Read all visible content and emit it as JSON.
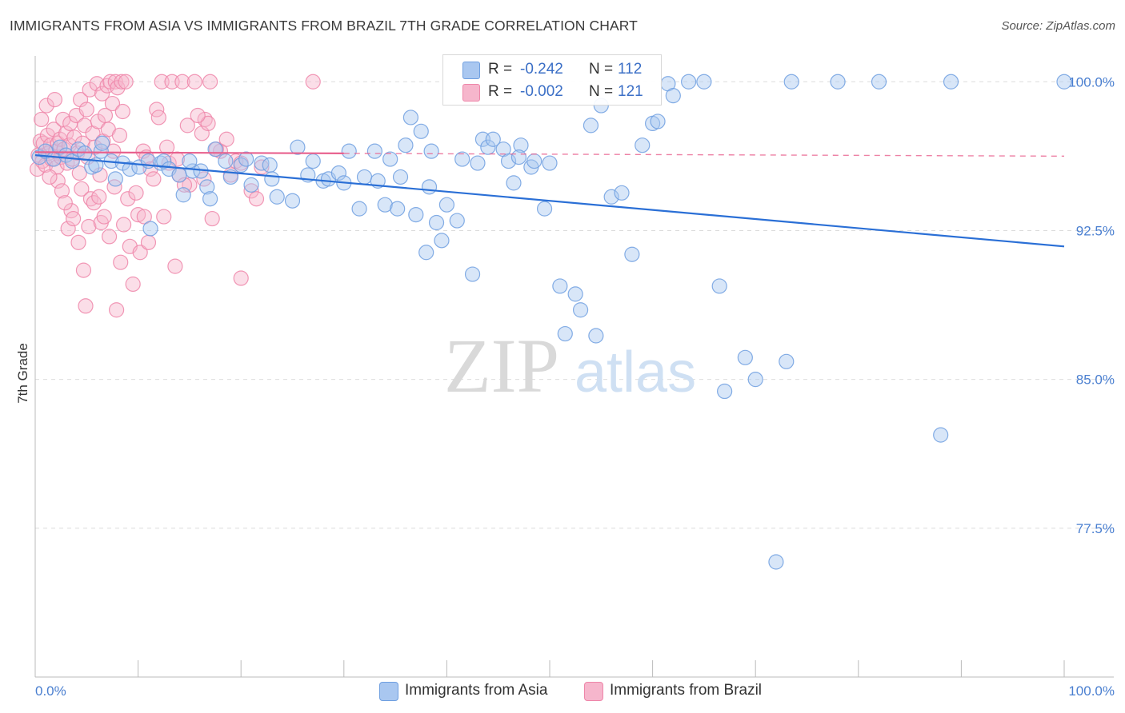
{
  "title": "IMMIGRANTS FROM ASIA VS IMMIGRANTS FROM BRAZIL 7TH GRADE CORRELATION CHART",
  "source": "Source: ZipAtlas.com",
  "watermark": {
    "part1": "ZIP",
    "part2": "atlas"
  },
  "stats": {
    "rows": [
      {
        "r_label": "R =",
        "r_value": "-0.242",
        "n_label": "N =",
        "n_value": "112"
      },
      {
        "r_label": "R =",
        "r_value": "-0.002",
        "n_label": "N =",
        "n_value": "121"
      }
    ]
  },
  "legend": {
    "asia": "Immigrants from Asia",
    "brazil": "Immigrants from Brazil"
  },
  "chart_data": {
    "type": "scatter",
    "title": "IMMIGRANTS FROM ASIA VS IMMIGRANTS FROM BRAZIL 7TH GRADE CORRELATION CHART",
    "xlabel": "",
    "ylabel": "7th Grade",
    "xlim": [
      0,
      100
    ],
    "ylim": [
      70,
      101.3
    ],
    "x_tick_labels": [
      "0.0%",
      "100.0%"
    ],
    "y_ticks": [
      77.5,
      85.0,
      92.5,
      100.0
    ],
    "y_tick_labels": [
      "77.5%",
      "85.0%",
      "92.5%",
      "100.0%"
    ],
    "grid": true,
    "legend_position": "bottom",
    "colors": {
      "asia": "#6f9fe0",
      "asia_fill": "#a9c7f0",
      "asia_line": "#2a6fd6",
      "brazil": "#ee86a9",
      "brazil_fill": "#f6b6cc",
      "brazil_line": "#e8618e"
    },
    "series": [
      {
        "name": "Immigrants from Asia",
        "r": -0.242,
        "n": 112,
        "trend": {
          "x": [
            0,
            100
          ],
          "y": [
            96.3,
            91.7
          ]
        },
        "points": [
          [
            0.4,
            96.2
          ],
          [
            1.0,
            96.5
          ],
          [
            1.8,
            96.1
          ],
          [
            2.4,
            96.7
          ],
          [
            3.0,
            96.3
          ],
          [
            3.6,
            96.0
          ],
          [
            4.2,
            96.6
          ],
          [
            4.8,
            96.4
          ],
          [
            5.5,
            95.7
          ],
          [
            5.9,
            95.8
          ],
          [
            6.4,
            96.5
          ],
          [
            6.5,
            96.9
          ],
          [
            7.4,
            96.0
          ],
          [
            7.8,
            95.1
          ],
          [
            8.5,
            95.9
          ],
          [
            9.2,
            95.6
          ],
          [
            10.1,
            95.7
          ],
          [
            11.0,
            96.0
          ],
          [
            11.2,
            92.6
          ],
          [
            12.2,
            95.9
          ],
          [
            12.5,
            96.0
          ],
          [
            13.0,
            95.6
          ],
          [
            14.0,
            95.3
          ],
          [
            15.3,
            95.5
          ],
          [
            14.4,
            94.3
          ],
          [
            16.1,
            95.5
          ],
          [
            15.0,
            96.0
          ],
          [
            16.7,
            94.7
          ],
          [
            17.5,
            96.6
          ],
          [
            18.5,
            96.0
          ],
          [
            17.0,
            94.1
          ],
          [
            19.0,
            95.2
          ],
          [
            20.0,
            95.8
          ],
          [
            20.5,
            96.1
          ],
          [
            21.0,
            94.8
          ],
          [
            22.0,
            95.9
          ],
          [
            22.8,
            95.8
          ],
          [
            23.0,
            95.1
          ],
          [
            23.5,
            94.2
          ],
          [
            25.0,
            94.0
          ],
          [
            25.5,
            96.7
          ],
          [
            26.5,
            95.3
          ],
          [
            27.0,
            96.0
          ],
          [
            28.0,
            95.0
          ],
          [
            28.5,
            95.1
          ],
          [
            29.5,
            95.4
          ],
          [
            30.0,
            94.9
          ],
          [
            30.5,
            96.5
          ],
          [
            31.5,
            93.6
          ],
          [
            32.0,
            95.2
          ],
          [
            33.0,
            96.5
          ],
          [
            33.3,
            95.0
          ],
          [
            34.0,
            93.8
          ],
          [
            34.5,
            96.1
          ],
          [
            35.2,
            93.6
          ],
          [
            35.5,
            95.2
          ],
          [
            36.0,
            96.8
          ],
          [
            37.0,
            93.3
          ],
          [
            36.5,
            98.2
          ],
          [
            37.5,
            97.5
          ],
          [
            38.5,
            96.5
          ],
          [
            38.3,
            94.7
          ],
          [
            39.0,
            92.9
          ],
          [
            38.0,
            91.4
          ],
          [
            39.5,
            92.0
          ],
          [
            40.0,
            93.8
          ],
          [
            41.0,
            93.0
          ],
          [
            41.5,
            96.1
          ],
          [
            42.5,
            90.3
          ],
          [
            43.0,
            95.9
          ],
          [
            43.5,
            97.1
          ],
          [
            44.0,
            96.7
          ],
          [
            44.5,
            97.1
          ],
          [
            45.5,
            96.6
          ],
          [
            46.0,
            96.0
          ],
          [
            47.2,
            96.8
          ],
          [
            47.0,
            96.2
          ],
          [
            46.5,
            94.9
          ],
          [
            48.2,
            95.7
          ],
          [
            48.5,
            96.0
          ],
          [
            49.5,
            93.6
          ],
          [
            50.0,
            95.9
          ],
          [
            51.0,
            89.7
          ],
          [
            52.5,
            89.3
          ],
          [
            53.0,
            88.5
          ],
          [
            51.5,
            87.3
          ],
          [
            54.5,
            87.2
          ],
          [
            55.0,
            98.8
          ],
          [
            54.0,
            97.8
          ],
          [
            56.0,
            94.2
          ],
          [
            57.0,
            94.4
          ],
          [
            58.0,
            91.3
          ],
          [
            59.0,
            96.8
          ],
          [
            60.0,
            97.9
          ],
          [
            60.5,
            98.0
          ],
          [
            61.5,
            99.9
          ],
          [
            62.0,
            99.3
          ],
          [
            63.5,
            100.0
          ],
          [
            65.0,
            100.0
          ],
          [
            66.5,
            89.7
          ],
          [
            67.0,
            84.4
          ],
          [
            69.0,
            86.1
          ],
          [
            70.0,
            85.0
          ],
          [
            73.0,
            85.9
          ],
          [
            72.0,
            75.8
          ],
          [
            73.5,
            100.0
          ],
          [
            78.0,
            100.0
          ],
          [
            82.0,
            100.0
          ],
          [
            88.0,
            82.2
          ],
          [
            89.0,
            100.0
          ],
          [
            100.0,
            100.0
          ]
        ]
      },
      {
        "name": "Immigrants from Brazil",
        "r": -0.002,
        "n": 121,
        "trend": {
          "x": [
            0,
            100
          ],
          "y": [
            96.45,
            96.25
          ]
        },
        "points": [
          [
            0.2,
            95.6
          ],
          [
            0.3,
            96.3
          ],
          [
            0.5,
            97.0
          ],
          [
            0.7,
            96.0
          ],
          [
            0.8,
            96.9
          ],
          [
            1.0,
            95.8
          ],
          [
            1.2,
            97.3
          ],
          [
            1.3,
            96.4
          ],
          [
            1.5,
            96.8
          ],
          [
            1.6,
            96.1
          ],
          [
            1.8,
            97.6
          ],
          [
            2.0,
            96.5
          ],
          [
            2.1,
            95.7
          ],
          [
            2.2,
            96.9
          ],
          [
            2.4,
            97.1
          ],
          [
            2.5,
            96.2
          ],
          [
            2.7,
            98.1
          ],
          [
            2.8,
            96.6
          ],
          [
            3.0,
            97.4
          ],
          [
            3.1,
            95.9
          ],
          [
            3.3,
            96.8
          ],
          [
            3.4,
            97.9
          ],
          [
            3.5,
            93.5
          ],
          [
            3.6,
            96.1
          ],
          [
            3.8,
            97.2
          ],
          [
            4.0,
            98.3
          ],
          [
            4.1,
            96.4
          ],
          [
            4.3,
            95.4
          ],
          [
            4.4,
            99.1
          ],
          [
            4.5,
            94.6
          ],
          [
            4.6,
            96.9
          ],
          [
            4.8,
            97.8
          ],
          [
            5.0,
            98.6
          ],
          [
            5.1,
            96.2
          ],
          [
            5.3,
            99.6
          ],
          [
            5.4,
            94.1
          ],
          [
            5.6,
            97.4
          ],
          [
            5.8,
            96.7
          ],
          [
            6.0,
            99.9
          ],
          [
            6.1,
            98.0
          ],
          [
            6.3,
            95.3
          ],
          [
            6.5,
            99.4
          ],
          [
            6.6,
            97.0
          ],
          [
            6.8,
            98.3
          ],
          [
            7.0,
            99.8
          ],
          [
            7.1,
            97.6
          ],
          [
            7.3,
            100.0
          ],
          [
            7.5,
            98.9
          ],
          [
            7.6,
            96.5
          ],
          [
            7.8,
            100.0
          ],
          [
            8.0,
            99.7
          ],
          [
            8.2,
            97.3
          ],
          [
            8.4,
            100.0
          ],
          [
            8.5,
            98.5
          ],
          [
            8.8,
            100.0
          ],
          [
            9.0,
            94.1
          ],
          [
            9.2,
            91.7
          ],
          [
            9.5,
            89.8
          ],
          [
            10.0,
            93.3
          ],
          [
            10.2,
            91.4
          ],
          [
            10.5,
            96.5
          ],
          [
            10.8,
            96.2
          ],
          [
            11.2,
            95.6
          ],
          [
            11.5,
            95.1
          ],
          [
            11.8,
            98.6
          ],
          [
            12.0,
            98.2
          ],
          [
            12.3,
            100.0
          ],
          [
            12.8,
            96.7
          ],
          [
            13.0,
            95.9
          ],
          [
            13.3,
            100.0
          ],
          [
            13.6,
            90.7
          ],
          [
            14.0,
            95.3
          ],
          [
            14.3,
            100.0
          ],
          [
            14.8,
            97.8
          ],
          [
            15.0,
            94.8
          ],
          [
            15.5,
            100.0
          ],
          [
            16.2,
            97.4
          ],
          [
            16.5,
            98.1
          ],
          [
            16.8,
            97.9
          ],
          [
            17.2,
            93.1
          ],
          [
            17.0,
            100.0
          ],
          [
            18.0,
            96.5
          ],
          [
            19.5,
            96.0
          ],
          [
            20.0,
            95.9
          ],
          [
            21.0,
            94.5
          ],
          [
            21.5,
            94.1
          ],
          [
            20.0,
            90.1
          ],
          [
            22.0,
            95.7
          ],
          [
            2.2,
            95.0
          ],
          [
            2.6,
            94.5
          ],
          [
            2.9,
            93.9
          ],
          [
            3.2,
            92.6
          ],
          [
            3.7,
            93.1
          ],
          [
            4.2,
            91.9
          ],
          [
            4.7,
            90.5
          ],
          [
            4.9,
            88.7
          ],
          [
            5.2,
            92.7
          ],
          [
            5.7,
            93.9
          ],
          [
            6.2,
            94.2
          ],
          [
            6.4,
            92.9
          ],
          [
            6.7,
            93.2
          ],
          [
            7.2,
            92.2
          ],
          [
            7.7,
            94.7
          ],
          [
            7.9,
            88.5
          ],
          [
            8.3,
            90.9
          ],
          [
            8.6,
            92.8
          ],
          [
            9.8,
            94.4
          ],
          [
            10.6,
            93.2
          ],
          [
            11.0,
            91.9
          ],
          [
            12.5,
            93.2
          ],
          [
            13.8,
            96.1
          ],
          [
            14.5,
            94.8
          ],
          [
            15.8,
            98.3
          ],
          [
            16.4,
            95.1
          ],
          [
            17.6,
            96.6
          ],
          [
            18.6,
            97.1
          ],
          [
            19.0,
            95.3
          ],
          [
            27.0,
            100.0
          ],
          [
            0.6,
            98.1
          ],
          [
            1.1,
            98.8
          ],
          [
            1.4,
            95.2
          ],
          [
            1.9,
            99.1
          ]
        ]
      }
    ]
  }
}
